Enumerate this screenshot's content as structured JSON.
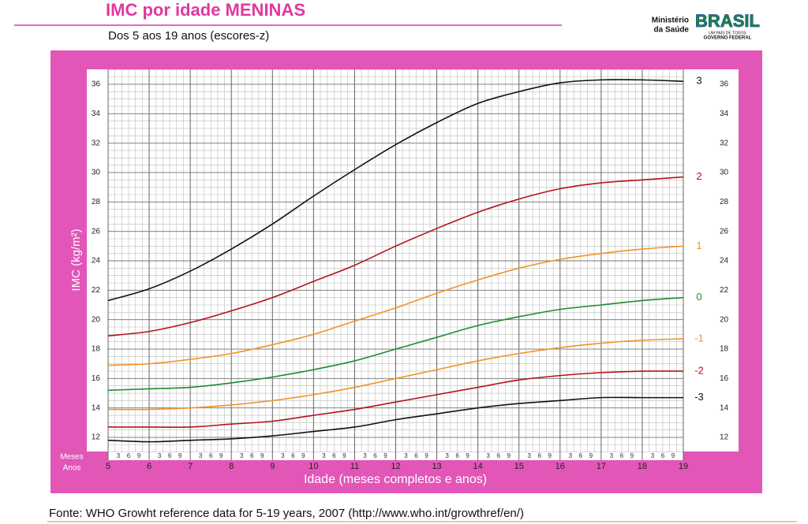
{
  "header": {
    "ministry": [
      "Ministério",
      "da Saúde"
    ],
    "brand": "BRASIL",
    "slogan": "UM PAÍS DE TODOS",
    "government": "GOVERNO FEDERAL"
  },
  "chart_data": {
    "type": "line",
    "title": "IMC por idade MENINAS",
    "subtitle": "Dos 5 aos 19 anos (escores-z)",
    "y_label": "IMC (kg/m²)",
    "x_label": "Idade (meses completos e anos)",
    "row_labels": [
      "Meses",
      "Anos"
    ],
    "month_labels": [
      "3",
      "6",
      "9"
    ],
    "x": [
      5,
      6,
      7,
      8,
      9,
      10,
      11,
      12,
      13,
      14,
      15,
      16,
      17,
      18,
      19
    ],
    "xlim": [
      5,
      19
    ],
    "xticks": [
      5,
      6,
      7,
      8,
      9,
      10,
      11,
      12,
      13,
      14,
      15,
      16,
      17,
      18,
      19
    ],
    "ylim": [
      11,
      37
    ],
    "yticks": [
      12,
      14,
      16,
      18,
      20,
      22,
      24,
      26,
      28,
      30,
      32,
      34,
      36
    ],
    "grid": true,
    "series": [
      {
        "name": "3",
        "color": "#111111",
        "values": [
          21.3,
          22.1,
          23.3,
          24.8,
          26.5,
          28.4,
          30.2,
          31.9,
          33.4,
          34.7,
          35.5,
          36.1,
          36.3,
          36.3,
          36.2
        ]
      },
      {
        "name": "2",
        "color": "#b5121b",
        "values": [
          18.9,
          19.2,
          19.8,
          20.6,
          21.5,
          22.6,
          23.7,
          25.0,
          26.2,
          27.3,
          28.2,
          28.9,
          29.3,
          29.5,
          29.7
        ]
      },
      {
        "name": "1",
        "color": "#f39325",
        "values": [
          16.9,
          17.0,
          17.3,
          17.7,
          18.3,
          19.0,
          19.9,
          20.8,
          21.8,
          22.7,
          23.5,
          24.1,
          24.5,
          24.8,
          25.0
        ]
      },
      {
        "name": "0",
        "color": "#1e8a2e",
        "values": [
          15.2,
          15.3,
          15.4,
          15.7,
          16.1,
          16.6,
          17.2,
          18.0,
          18.8,
          19.6,
          20.2,
          20.7,
          21.0,
          21.3,
          21.5
        ]
      },
      {
        "name": "-1",
        "color": "#f39325",
        "values": [
          13.9,
          13.9,
          14.0,
          14.2,
          14.5,
          14.9,
          15.4,
          16.0,
          16.6,
          17.2,
          17.7,
          18.1,
          18.4,
          18.6,
          18.7
        ]
      },
      {
        "name": "-2",
        "color": "#b5121b",
        "values": [
          12.7,
          12.7,
          12.7,
          12.9,
          13.1,
          13.5,
          13.9,
          14.4,
          14.9,
          15.4,
          15.9,
          16.2,
          16.4,
          16.5,
          16.5
        ]
      },
      {
        "name": "-3",
        "color": "#111111",
        "values": [
          11.8,
          11.7,
          11.8,
          11.9,
          12.1,
          12.4,
          12.7,
          13.2,
          13.6,
          14.0,
          14.3,
          14.5,
          14.7,
          14.7,
          14.7
        ]
      }
    ],
    "source": "Fonte: WHO Growht reference data for 5-19 years, 2007 (http://www.who.int/growthref/en/)"
  }
}
